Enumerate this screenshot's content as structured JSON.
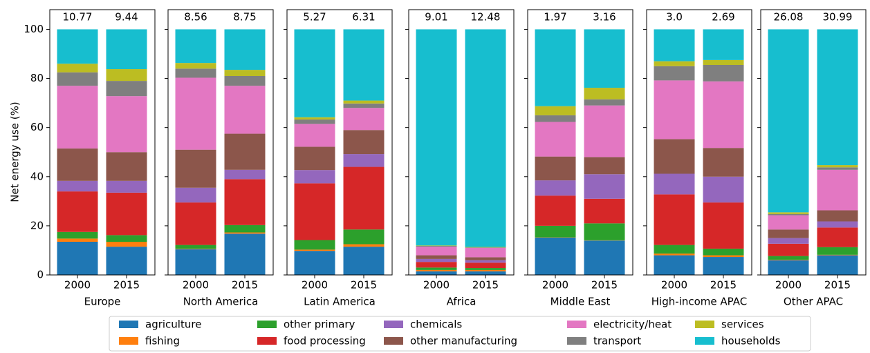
{
  "chart_data": {
    "type": "stacked_bar",
    "ylabel": "Net energy use (%)",
    "ylim": [
      0,
      108
    ],
    "yticks": [
      0,
      20,
      40,
      60,
      80,
      100
    ],
    "series": [
      {
        "name": "agriculture",
        "color": "#1f77b4"
      },
      {
        "name": "fishing",
        "color": "#ff7f0e"
      },
      {
        "name": "other primary",
        "color": "#2ca02c"
      },
      {
        "name": "food processing",
        "color": "#d62728"
      },
      {
        "name": "chemicals",
        "color": "#9467bd"
      },
      {
        "name": "other manufacturing",
        "color": "#8c564b"
      },
      {
        "name": "electricity/heat",
        "color": "#e377c2"
      },
      {
        "name": "transport",
        "color": "#7f7f7f"
      },
      {
        "name": "services",
        "color": "#bcbd22"
      },
      {
        "name": "households",
        "color": "#17becf"
      }
    ],
    "panels": [
      {
        "title": "Europe",
        "categories": [
          "2000",
          "2015"
        ],
        "totals": [
          10.77,
          9.44
        ],
        "values": [
          [
            13.5,
            11.5
          ],
          [
            1.3,
            2
          ],
          [
            2.7,
            2.7
          ],
          [
            16.5,
            17.3
          ],
          [
            4.3,
            4.8
          ],
          [
            13.2,
            11.7
          ],
          [
            25.5,
            22.8
          ],
          [
            5.5,
            6.2
          ],
          [
            3.5,
            4.8
          ],
          [
            14,
            16.2
          ]
        ]
      },
      {
        "title": "North America",
        "categories": [
          "2000",
          "2015"
        ],
        "totals": [
          8.56,
          8.75
        ],
        "values": [
          [
            10.5,
            16.8
          ],
          [
            0.2,
            0.5
          ],
          [
            1.5,
            3
          ],
          [
            17.3,
            18.7
          ],
          [
            6,
            3.8
          ],
          [
            15.5,
            14.7
          ],
          [
            29.3,
            19.5
          ],
          [
            3.7,
            4
          ],
          [
            2.3,
            2.5
          ],
          [
            13.7,
            16.5
          ]
        ]
      },
      {
        "title": "Latin America",
        "categories": [
          "2000",
          "2015"
        ],
        "totals": [
          5.27,
          6.31
        ],
        "values": [
          [
            9.8,
            11.5
          ],
          [
            0.5,
            1
          ],
          [
            3.9,
            6
          ],
          [
            23.1,
            25.5
          ],
          [
            5.4,
            5.2
          ],
          [
            9.5,
            9.8
          ],
          [
            9.3,
            9
          ],
          [
            1.8,
            1.8
          ],
          [
            0.9,
            1.2
          ],
          [
            35.8,
            29
          ]
        ]
      },
      {
        "title": "Africa",
        "categories": [
          "2000",
          "2015"
        ],
        "totals": [
          9.01,
          12.48
        ],
        "values": [
          [
            1.5,
            1.5
          ],
          [
            0.5,
            0.5
          ],
          [
            1,
            0.8
          ],
          [
            2.3,
            2.2
          ],
          [
            1.2,
            1
          ],
          [
            1.5,
            1.2
          ],
          [
            3.5,
            3.8
          ],
          [
            0.3,
            0.2
          ],
          [
            0.2,
            0.2
          ],
          [
            88,
            88.6
          ]
        ]
      },
      {
        "title": "Middle East",
        "categories": [
          "2000",
          "2015"
        ],
        "totals": [
          1.97,
          3.16
        ],
        "values": [
          [
            15.2,
            14
          ],
          [
            0.1,
            0.1
          ],
          [
            4.7,
            6.9
          ],
          [
            12.3,
            10
          ],
          [
            6.2,
            10
          ],
          [
            9.7,
            7
          ],
          [
            14.1,
            21
          ],
          [
            2.7,
            2.5
          ],
          [
            3.7,
            4.7
          ],
          [
            31.3,
            23.8
          ]
        ]
      },
      {
        "title": "High-income APAC",
        "categories": [
          "2000",
          "2015"
        ],
        "totals": [
          3.0,
          2.69
        ],
        "total_labels": [
          "3.0",
          "2.69"
        ],
        "values": [
          [
            8,
            7.3
          ],
          [
            0.7,
            0.7
          ],
          [
            3.5,
            2.7
          ],
          [
            20.6,
            18.8
          ],
          [
            8.4,
            10.5
          ],
          [
            14.1,
            11.7
          ],
          [
            23.9,
            27.1
          ],
          [
            5.8,
            6.7
          ],
          [
            2,
            2
          ],
          [
            13,
            12.5
          ]
        ]
      },
      {
        "title": "Other APAC",
        "categories": [
          "2000",
          "2015"
        ],
        "totals": [
          26.08,
          30.99
        ],
        "values": [
          [
            6,
            8
          ],
          [
            0.2,
            0.2
          ],
          [
            1.5,
            3.1
          ],
          [
            5,
            8
          ],
          [
            2.3,
            2.5
          ],
          [
            3.5,
            4.5
          ],
          [
            5.8,
            16.5
          ],
          [
            0.5,
            1
          ],
          [
            0.7,
            0.9
          ],
          [
            74.5,
            55.3
          ]
        ]
      }
    ]
  }
}
